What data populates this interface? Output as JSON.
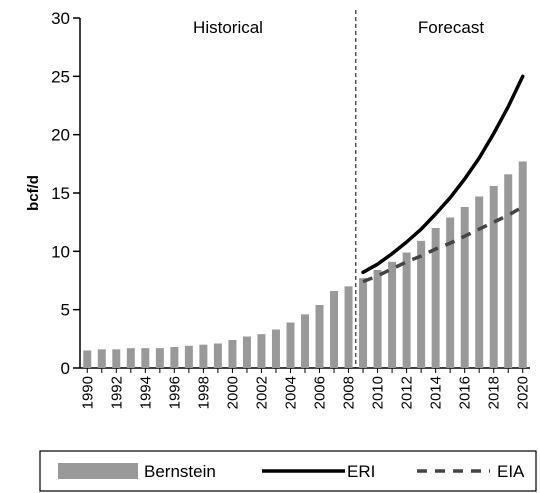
{
  "chart_data": {
    "type": "bar",
    "ylabel": "bcf/d",
    "ylim": [
      0,
      30
    ],
    "yticks": [
      "0",
      "5",
      "10",
      "15",
      "20",
      "25",
      "30"
    ],
    "x": [
      1990,
      1991,
      1992,
      1993,
      1994,
      1995,
      1996,
      1997,
      1998,
      1999,
      2000,
      2001,
      2002,
      2003,
      2004,
      2005,
      2006,
      2007,
      2008,
      2009,
      2010,
      2011,
      2012,
      2013,
      2014,
      2015,
      2016,
      2017,
      2018,
      2019,
      2020
    ],
    "xtick_labels": [
      "1990",
      "1992",
      "1994",
      "1996",
      "1998",
      "2000",
      "2002",
      "2004",
      "2006",
      "2008",
      "2010",
      "2012",
      "2014",
      "2016",
      "2018",
      "2020"
    ],
    "regions": {
      "historical": "Historical",
      "forecast": "Forecast",
      "divider_after": 2008
    },
    "series": [
      {
        "name": "Bernstein",
        "kind": "bar",
        "color": "#999999",
        "values": [
          1.5,
          1.6,
          1.6,
          1.7,
          1.7,
          1.7,
          1.8,
          1.9,
          2.0,
          2.1,
          2.4,
          2.7,
          2.9,
          3.3,
          3.9,
          4.6,
          5.4,
          6.6,
          7.0,
          7.7,
          8.4,
          9.1,
          9.9,
          10.9,
          12.0,
          12.9,
          13.8,
          14.7,
          15.6,
          16.6,
          17.7
        ]
      },
      {
        "name": "ERI",
        "kind": "line",
        "style": "solid",
        "color": "#000000",
        "x": [
          2009,
          2010,
          2011,
          2012,
          2013,
          2014,
          2015,
          2016,
          2017,
          2018,
          2019,
          2020
        ],
        "values": [
          8.2,
          8.9,
          9.8,
          10.8,
          11.9,
          13.2,
          14.6,
          16.2,
          18.0,
          20.1,
          22.4,
          25.0
        ]
      },
      {
        "name": "EIA",
        "kind": "line",
        "style": "dashed",
        "color": "#444444",
        "x": [
          2009,
          2010,
          2011,
          2012,
          2013,
          2014,
          2015,
          2016,
          2017,
          2018,
          2019,
          2020
        ],
        "values": [
          7.4,
          7.9,
          8.5,
          9.1,
          9.6,
          10.2,
          10.7,
          11.3,
          11.9,
          12.5,
          13.1,
          13.8
        ]
      }
    ],
    "legend": {
      "position": "bottom"
    }
  }
}
